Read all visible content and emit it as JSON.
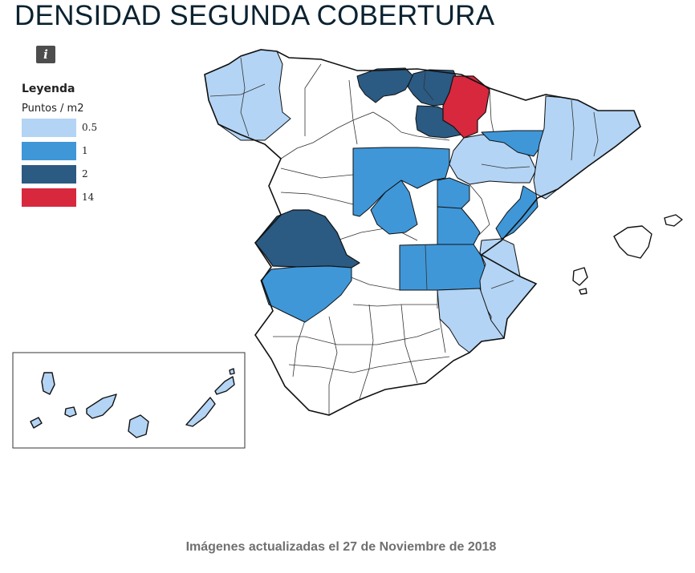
{
  "header": {
    "title": "DENSIDAD SEGUNDA COBERTURA"
  },
  "info_button": {
    "label": "i",
    "icon": "info-icon"
  },
  "legend": {
    "title": "Leyenda",
    "units": "Puntos / m2",
    "items": [
      {
        "label": "0.5",
        "color": "#b3d4f4"
      },
      {
        "label": "1",
        "color": "#3f97d8"
      },
      {
        "label": "2",
        "color": "#2b5a83"
      },
      {
        "label": "14",
        "color": "#d7283e"
      }
    ]
  },
  "map": {
    "colors": {
      "outline": "#111111",
      "internal_border": "#333333",
      "no_data": "#ffffff"
    },
    "regions": [
      {
        "name": "Galicia",
        "class": "0.5"
      },
      {
        "name": "Cantabria",
        "class": "2"
      },
      {
        "name": "País Vasco",
        "class": "2"
      },
      {
        "name": "Burgos (este)",
        "class": "2"
      },
      {
        "name": "Navarra",
        "class": "14"
      },
      {
        "name": "Zaragoza / Huesca (oeste)",
        "class": "0.5"
      },
      {
        "name": "Huesca (este)",
        "class": "1"
      },
      {
        "name": "Cataluña",
        "class": "0.5"
      },
      {
        "name": "Segovia / Valladolid",
        "class": "1"
      },
      {
        "name": "Madrid",
        "class": "1"
      },
      {
        "name": "Guadalajara",
        "class": "1"
      },
      {
        "name": "Cuenca",
        "class": "1"
      },
      {
        "name": "Ciudad Real / Albacete",
        "class": "1"
      },
      {
        "name": "Cáceres",
        "class": "2"
      },
      {
        "name": "Badajoz",
        "class": "1"
      },
      {
        "name": "Castellón",
        "class": "1"
      },
      {
        "name": "Valencia",
        "class": "0.5"
      },
      {
        "name": "Murcia",
        "class": "0.5"
      },
      {
        "name": "Canarias",
        "class": "0.5"
      }
    ]
  },
  "footer": {
    "note": "Imágenes actualizadas el 27 de Noviembre de 2018"
  }
}
